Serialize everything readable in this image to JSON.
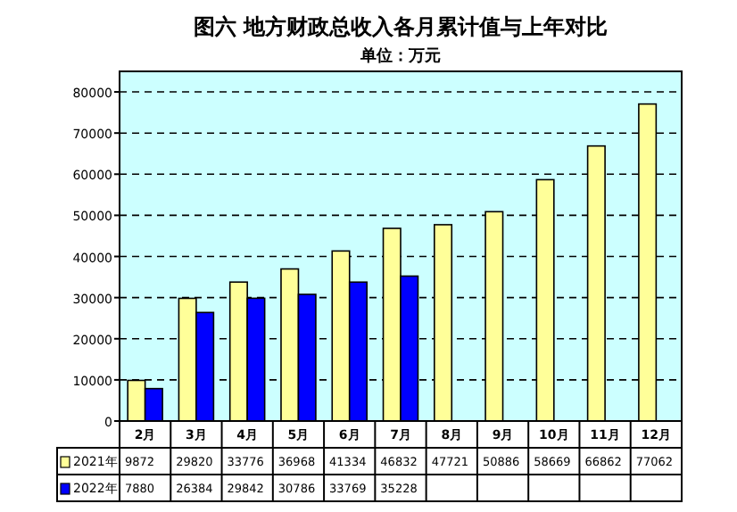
{
  "chart_data": {
    "type": "bar",
    "title": "图六  地方财政总收入各月累计值与上年对比",
    "subtitle": "单位：万元",
    "categories": [
      "2月",
      "3月",
      "4月",
      "5月",
      "6月",
      "7月",
      "8月",
      "9月",
      "10月",
      "11月",
      "12月"
    ],
    "series": [
      {
        "name": "2021年",
        "color": "#ffff99",
        "values": [
          9872,
          29820,
          33776,
          36968,
          41334,
          46832,
          47721,
          50886,
          58669,
          66862,
          77062
        ]
      },
      {
        "name": "2022年",
        "color": "#0000ff",
        "values": [
          7880,
          26384,
          29842,
          30786,
          33769,
          35228,
          null,
          null,
          null,
          null,
          null
        ]
      }
    ],
    "ylim": [
      0,
      85000
    ],
    "yticks": [
      0,
      10000,
      20000,
      30000,
      40000,
      50000,
      60000,
      70000,
      80000
    ],
    "grid": "y",
    "data_labels": true,
    "legend": "bottom left"
  }
}
